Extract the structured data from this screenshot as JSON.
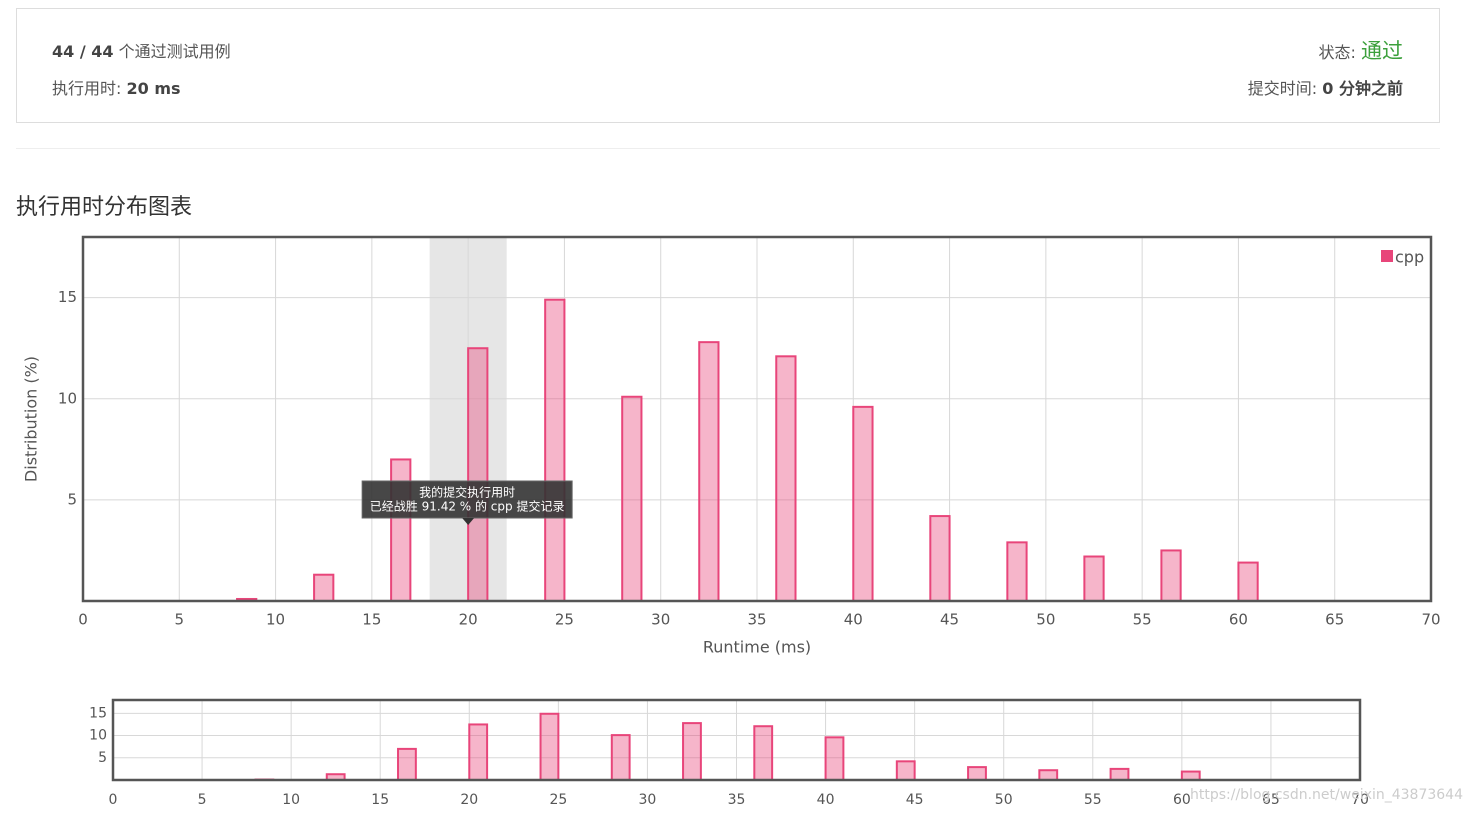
{
  "header": {
    "passed": "44 / 44",
    "passed_label": "个通过测试用例",
    "runtime_label": "执行用时:",
    "runtime": "20 ms",
    "status_label": "状态:",
    "status": "通过",
    "submit_label": "提交时间:",
    "submit_time": "0 分钟之前"
  },
  "section_title": "执行用时分布图表",
  "watermark": "https://blog.csdn.net/weixin_43873644",
  "chart_data": [
    {
      "type": "bar",
      "xlabel": "Runtime (ms)",
      "ylabel": "Distribution (%)",
      "x": [
        8.5,
        12.5,
        16.5,
        20.5,
        24.5,
        28.5,
        32.5,
        36.5,
        40.5,
        44.5,
        48.5,
        52.5,
        56.5,
        60.5
      ],
      "series": [
        {
          "name": "cpp",
          "color": "#e8457a",
          "values": [
            0.1,
            1.3,
            7.0,
            12.5,
            14.9,
            10.1,
            12.8,
            12.1,
            9.6,
            4.2,
            2.9,
            2.2,
            2.5,
            1.9
          ]
        }
      ],
      "xlim": [
        0,
        70
      ],
      "xticks": [
        0,
        5,
        10,
        15,
        20,
        25,
        30,
        35,
        40,
        45,
        50,
        55,
        60,
        65,
        70
      ],
      "ylim": [
        0,
        18
      ],
      "yticks": [
        5,
        10,
        15
      ],
      "grid": true,
      "legend": "upper right",
      "highlight_x": [
        18,
        22
      ],
      "annotation": [
        "我的提交执行用时",
        "已经战胜 91.42 % 的 cpp 提交记录"
      ]
    },
    {
      "type": "bar",
      "x": [
        8.5,
        12.5,
        16.5,
        20.5,
        24.5,
        28.5,
        32.5,
        36.5,
        40.5,
        44.5,
        48.5,
        52.5,
        56.5,
        60.5
      ],
      "series": [
        {
          "color": "#e8457a",
          "values": [
            0.1,
            1.3,
            7.0,
            12.5,
            14.9,
            10.1,
            12.8,
            12.1,
            9.6,
            4.2,
            2.9,
            2.2,
            2.5,
            1.9
          ]
        }
      ],
      "xlim": [
        0,
        70
      ],
      "xticks": [
        0,
        5,
        10,
        15,
        20,
        25,
        30,
        35,
        40,
        45,
        50,
        55,
        60,
        65,
        70
      ],
      "ylim": [
        0,
        18
      ],
      "yticks": [
        5,
        10,
        15
      ],
      "grid": true
    }
  ]
}
